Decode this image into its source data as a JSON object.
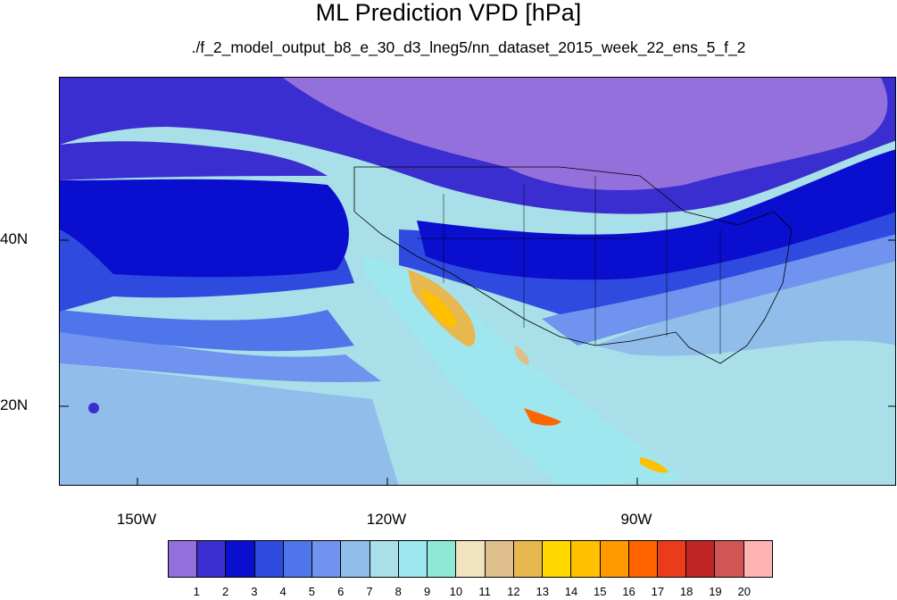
{
  "title": "ML Prediction VPD [hPa]",
  "subtitle": "./f_2_model_output_b8_e_30_d3_lneg5/nn_dataset_2015_week_22_ens_5_f_2",
  "axes": {
    "lon_labels": [
      "150W",
      "120W",
      "90W"
    ],
    "lat_labels": [
      "40N",
      "20N"
    ]
  },
  "colorbar": {
    "labels": [
      "1",
      "2",
      "3",
      "4",
      "5",
      "6",
      "7",
      "8",
      "9",
      "10",
      "11",
      "12",
      "13",
      "14",
      "15",
      "16",
      "17",
      "18",
      "19",
      "20"
    ],
    "colors": [
      "#9370db",
      "#3b2ed0",
      "#0a0ecf",
      "#2f4bdf",
      "#4f75ea",
      "#6f93ee",
      "#90bdea",
      "#a9dfe8",
      "#9fe7ef",
      "#8ee8d6",
      "#f2e4c0",
      "#ddbe8c",
      "#e8b850",
      "#ffd900",
      "#ffc000",
      "#ff9a00",
      "#ff6400",
      "#ea3c1a",
      "#bf2424",
      "#d25555",
      "#ffb4b4"
    ]
  }
}
